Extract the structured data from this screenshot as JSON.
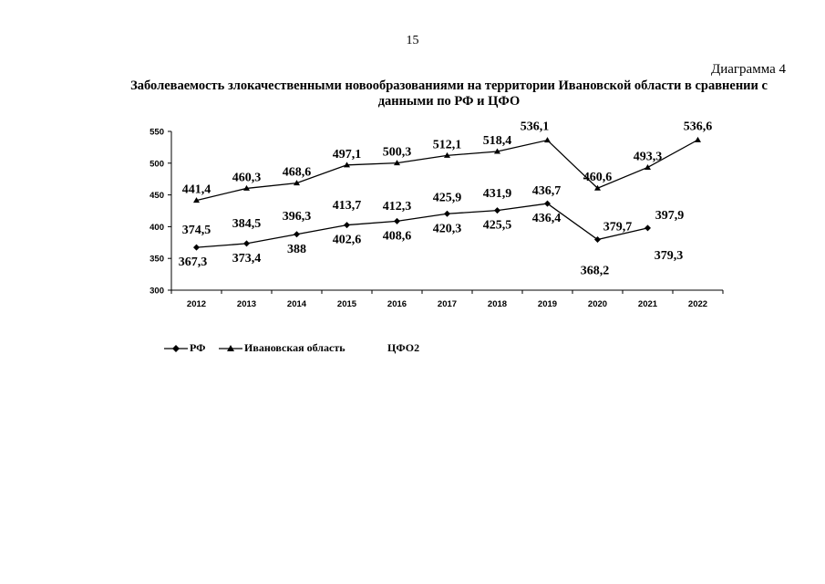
{
  "page": {
    "number": "15",
    "diagram_label": "Диаграмма 4",
    "title_line1": "Заболеваемость злокачественными новообразованиями на территории Ивановской области в сравнении с",
    "title_line2": "данными по РФ и ЦФО"
  },
  "chart_data": {
    "type": "line",
    "categories": [
      "2012",
      "2013",
      "2014",
      "2015",
      "2016",
      "2017",
      "2018",
      "2019",
      "2020",
      "2021",
      "2022"
    ],
    "ylim": [
      300,
      550
    ],
    "yticks": [
      300,
      350,
      400,
      450,
      500,
      550
    ],
    "grid": false,
    "legend_position": "bottom-left",
    "series": [
      {
        "name": "РФ",
        "marker": "diamond",
        "values": [
          367.3,
          373.4,
          388,
          402.6,
          408.6,
          420.3,
          425.5,
          436.4,
          379.7,
          397.9,
          null
        ],
        "labels": [
          "367,3",
          "373,4",
          "388",
          "402,6",
          "408,6",
          "420,3",
          "425,5",
          "436,4",
          "379,7",
          "397,9",
          null
        ]
      },
      {
        "name": "Ивановская область",
        "marker": "triangle",
        "values": [
          441.4,
          460.3,
          468.6,
          497.1,
          500.3,
          512.1,
          518.4,
          536.1,
          460.6,
          493.3,
          536.6
        ],
        "labels": [
          "441,4",
          "460,3",
          "468,6",
          "497,1",
          "500,3",
          "512,1",
          "518,4",
          "536,1",
          "460,6",
          "493,3",
          "536,6"
        ]
      },
      {
        "name": "ЦФО2",
        "marker": "none",
        "values": [
          374.5,
          384.5,
          396.3,
          413.7,
          412.3,
          425.9,
          431.9,
          436.7,
          368.2,
          379.3,
          null
        ],
        "labels": [
          "374,5",
          "384,5",
          "396,3",
          "413,7",
          "412,3",
          "425,9",
          "431,9",
          "436,7",
          "368,2",
          "379,3",
          null
        ]
      }
    ]
  }
}
